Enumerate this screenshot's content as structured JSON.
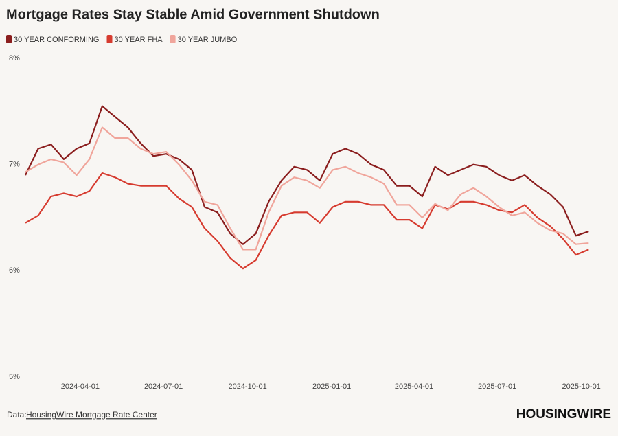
{
  "chart_data": {
    "type": "line",
    "title": "Mortgage Rates Stay Stable Amid Government Shutdown",
    "source_label": "Data:",
    "source_link": "HousingWire Mortgage Rate Center",
    "brand": "HOUSINGWIRE",
    "grid": false,
    "xlim": [
      "2024-02-01",
      "2025-10-11"
    ],
    "xticks": [
      "2024-04-01",
      "2024-07-01",
      "2024-10-01",
      "2025-01-01",
      "2025-04-01",
      "2025-07-01",
      "2025-10-01"
    ],
    "ylim": [
      5,
      8
    ],
    "yticks": [
      {
        "value": 5,
        "label": "5%"
      },
      {
        "value": 6,
        "label": "6%"
      },
      {
        "value": 7,
        "label": "7%"
      },
      {
        "value": 8,
        "label": "8%"
      }
    ],
    "x": [
      "2024-02-01",
      "2024-02-15",
      "2024-02-29",
      "2024-03-14",
      "2024-03-28",
      "2024-04-11",
      "2024-04-25",
      "2024-05-09",
      "2024-05-23",
      "2024-06-06",
      "2024-06-20",
      "2024-07-04",
      "2024-07-18",
      "2024-08-01",
      "2024-08-15",
      "2024-08-29",
      "2024-09-12",
      "2024-09-26",
      "2024-10-10",
      "2024-10-24",
      "2024-11-07",
      "2024-11-21",
      "2024-12-05",
      "2024-12-19",
      "2025-01-02",
      "2025-01-16",
      "2025-01-30",
      "2025-02-13",
      "2025-02-27",
      "2025-03-13",
      "2025-03-27",
      "2025-04-10",
      "2025-04-24",
      "2025-05-08",
      "2025-05-22",
      "2025-06-05",
      "2025-06-19",
      "2025-07-03",
      "2025-07-17",
      "2025-07-31",
      "2025-08-14",
      "2025-08-28",
      "2025-09-11",
      "2025-09-25",
      "2025-10-09"
    ],
    "series": [
      {
        "name": "30 YEAR CONFORMING",
        "color": "#8b1e1e",
        "values": [
          6.9,
          7.15,
          7.19,
          7.05,
          7.15,
          7.2,
          7.55,
          7.45,
          7.35,
          7.2,
          7.08,
          7.1,
          7.05,
          6.95,
          6.6,
          6.55,
          6.35,
          6.25,
          6.35,
          6.65,
          6.85,
          6.98,
          6.95,
          6.85,
          7.1,
          7.15,
          7.1,
          7.0,
          6.95,
          6.8,
          6.8,
          6.7,
          6.98,
          6.9,
          6.95,
          7.0,
          6.98,
          6.9,
          6.85,
          6.9,
          6.8,
          6.72,
          6.6,
          6.33,
          6.37
        ]
      },
      {
        "name": "30 YEAR FHA",
        "color": "#d63b2f",
        "values": [
          6.45,
          6.52,
          6.7,
          6.73,
          6.7,
          6.75,
          6.92,
          6.88,
          6.82,
          6.8,
          6.8,
          6.8,
          6.68,
          6.6,
          6.4,
          6.28,
          6.12,
          6.02,
          6.1,
          6.33,
          6.52,
          6.55,
          6.55,
          6.45,
          6.6,
          6.65,
          6.65,
          6.62,
          6.62,
          6.48,
          6.48,
          6.4,
          6.62,
          6.58,
          6.65,
          6.65,
          6.62,
          6.57,
          6.55,
          6.62,
          6.5,
          6.42,
          6.3,
          6.15,
          6.2
        ]
      },
      {
        "name": "30 YEAR JUMBO",
        "color": "#f0a59b",
        "values": [
          6.93,
          7.0,
          7.05,
          7.02,
          6.9,
          7.05,
          7.35,
          7.25,
          7.25,
          7.15,
          7.1,
          7.12,
          7.0,
          6.85,
          6.65,
          6.62,
          6.4,
          6.2,
          6.2,
          6.55,
          6.8,
          6.88,
          6.85,
          6.78,
          6.95,
          6.98,
          6.92,
          6.88,
          6.82,
          6.62,
          6.62,
          6.5,
          6.63,
          6.57,
          6.72,
          6.78,
          6.7,
          6.6,
          6.52,
          6.55,
          6.45,
          6.38,
          6.35,
          6.25,
          6.26
        ]
      }
    ]
  }
}
